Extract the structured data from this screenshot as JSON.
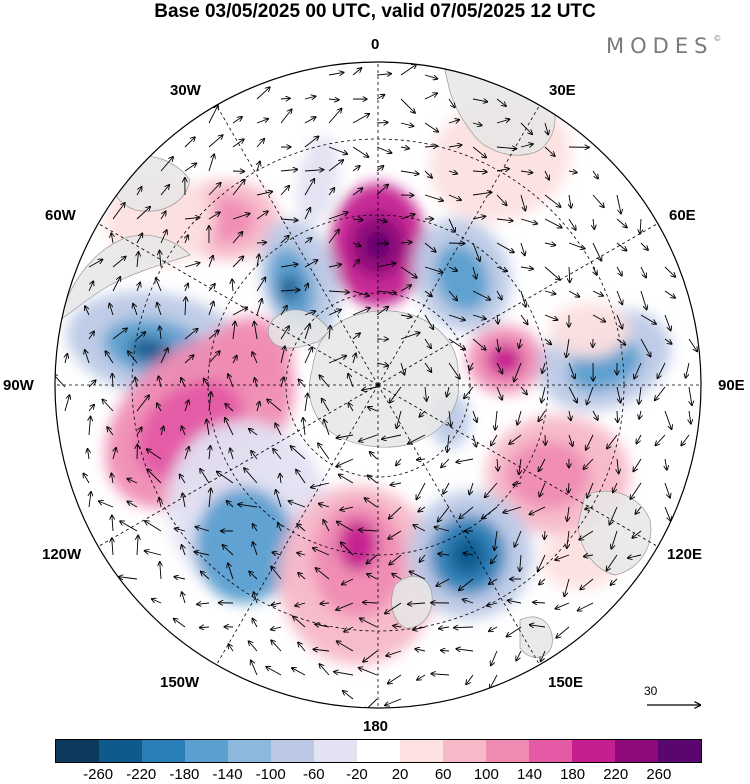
{
  "title": "Base 03/05/2025 00 UTC, valid 07/05/2025 12 UTC",
  "brand": "MODES",
  "brand_mark": "©",
  "longitude_labels": {
    "n": "0",
    "ne": "30E",
    "e1": "60E",
    "e": "90E",
    "se1": "120E",
    "se": "150E",
    "s": "180",
    "sw": "150W",
    "w1": "120W",
    "w": "90W",
    "nw1": "60W",
    "nw": "30W"
  },
  "reference_vector": {
    "label": "30"
  },
  "colorbar": {
    "colors": [
      "#0d3a5c",
      "#0f5a8c",
      "#2a7fb8",
      "#5a9fd0",
      "#8db8de",
      "#bcc9e6",
      "#e2e2f2",
      "#ffffff",
      "#fde0e0",
      "#f7b8c8",
      "#f08cb4",
      "#e45aa5",
      "#c41e8f",
      "#8e0a7a",
      "#5a0670"
    ],
    "labels": [
      "-260",
      "-220",
      "-180",
      "-140",
      "-100",
      "-60",
      "-20",
      "20",
      "60",
      "100",
      "140",
      "180",
      "220",
      "260"
    ]
  },
  "map_style": {
    "land": "#e6e6e6",
    "land_edge": "#9a9a9a",
    "grid": "#000000"
  }
}
